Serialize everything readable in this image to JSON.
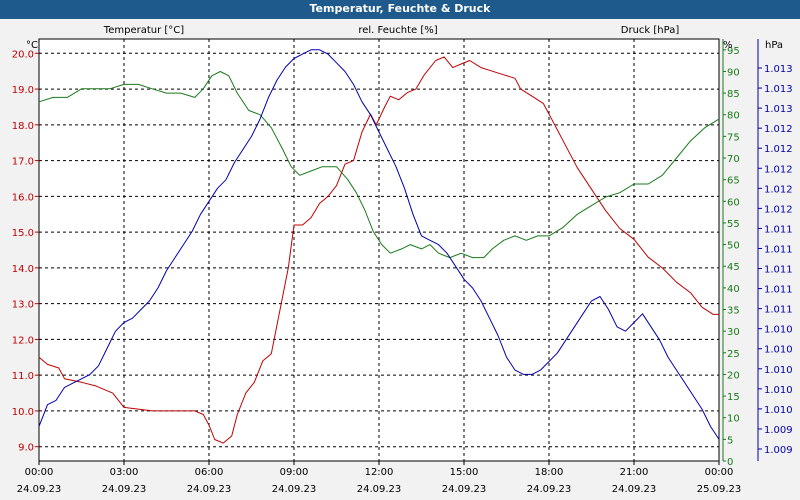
{
  "window": {
    "title": "Temperatur, Feuchte & Druck"
  },
  "colors": {
    "temperature": "#c00000",
    "humidity": "#1a7a1a",
    "pressure": "#0000b0",
    "title_bar": "#1f5a8c"
  },
  "chart_data": {
    "type": "line",
    "title": "Temperatur, Feuchte & Druck",
    "x_hours": [
      0,
      24
    ],
    "x_ticks": [
      {
        "h": 0,
        "time": "00:00",
        "date": "24.09.23"
      },
      {
        "h": 3,
        "time": "03:00",
        "date": "24.09.23"
      },
      {
        "h": 6,
        "time": "06:00",
        "date": "24.09.23"
      },
      {
        "h": 9,
        "time": "09:00",
        "date": "24.09.23"
      },
      {
        "h": 12,
        "time": "12:00",
        "date": "24.09.23"
      },
      {
        "h": 15,
        "time": "15:00",
        "date": "24.09.23"
      },
      {
        "h": 18,
        "time": "18:00",
        "date": "24.09.23"
      },
      {
        "h": 21,
        "time": "21:00",
        "date": "24.09.23"
      },
      {
        "h": 24,
        "time": "00:00",
        "date": "25.09.23"
      }
    ],
    "axes": {
      "temperature": {
        "label": "Temperatur [°C]",
        "unit": "°C",
        "ylim": [
          8.6,
          20.4
        ],
        "ticks": [
          "9.0",
          "10.0",
          "11.0",
          "12.0",
          "13.0",
          "14.0",
          "15.0",
          "16.0",
          "17.0",
          "18.0",
          "19.0",
          "20.0"
        ]
      },
      "humidity": {
        "label": "rel. Feuchte [%]",
        "unit": "%",
        "ylim": [
          0,
          97.5
        ],
        "ticks": [
          "0",
          "5",
          "10",
          "15",
          "20",
          "25",
          "30",
          "35",
          "40",
          "45",
          "50",
          "55",
          "60",
          "65",
          "70",
          "75",
          "80",
          "85",
          "90",
          "95"
        ]
      },
      "pressure": {
        "label": "Druck [hPa]",
        "unit": "hPa",
        "ticks": [
          "1.009",
          "1.009",
          "1.010",
          "1.010",
          "1.010",
          "1.010",
          "1.010",
          "1.011",
          "1.011",
          "1.011",
          "1.011",
          "1.011",
          "1.012",
          "1.012",
          "1.012",
          "1.012",
          "1.012",
          "1.013",
          "1.013",
          "1.013"
        ]
      }
    },
    "series": [
      {
        "name": "Temperatur [°C]",
        "key": "temperature",
        "points": [
          [
            0,
            11.5
          ],
          [
            0.3,
            11.3
          ],
          [
            0.7,
            11.2
          ],
          [
            0.9,
            10.9
          ],
          [
            1.5,
            10.8
          ],
          [
            2,
            10.7
          ],
          [
            2.6,
            10.5
          ],
          [
            3,
            10.1
          ],
          [
            3.5,
            10.05
          ],
          [
            4,
            10.0
          ],
          [
            5,
            10.0
          ],
          [
            5.5,
            10.0
          ],
          [
            5.8,
            9.9
          ],
          [
            6,
            9.6
          ],
          [
            6.2,
            9.2
          ],
          [
            6.5,
            9.1
          ],
          [
            6.8,
            9.3
          ],
          [
            7,
            9.9
          ],
          [
            7.3,
            10.5
          ],
          [
            7.6,
            10.8
          ],
          [
            7.9,
            11.4
          ],
          [
            8.2,
            11.6
          ],
          [
            8.5,
            12.8
          ],
          [
            8.8,
            14.0
          ],
          [
            9.0,
            15.2
          ],
          [
            9.3,
            15.2
          ],
          [
            9.6,
            15.4
          ],
          [
            9.9,
            15.8
          ],
          [
            10.2,
            16.0
          ],
          [
            10.5,
            16.3
          ],
          [
            10.8,
            16.9
          ],
          [
            11.1,
            17.0
          ],
          [
            11.4,
            17.8
          ],
          [
            11.7,
            18.3
          ],
          [
            11.9,
            18.0
          ],
          [
            12.2,
            18.5
          ],
          [
            12.4,
            18.8
          ],
          [
            12.7,
            18.7
          ],
          [
            13.0,
            18.9
          ],
          [
            13.3,
            19.0
          ],
          [
            13.6,
            19.4
          ],
          [
            14.0,
            19.8
          ],
          [
            14.3,
            19.9
          ],
          [
            14.6,
            19.6
          ],
          [
            14.9,
            19.7
          ],
          [
            15.2,
            19.8
          ],
          [
            15.6,
            19.6
          ],
          [
            16.0,
            19.5
          ],
          [
            16.4,
            19.4
          ],
          [
            16.8,
            19.3
          ],
          [
            17.0,
            19.0
          ],
          [
            17.4,
            18.8
          ],
          [
            17.8,
            18.6
          ],
          [
            18.2,
            18.0
          ],
          [
            18.6,
            17.4
          ],
          [
            19,
            16.8
          ],
          [
            19.5,
            16.2
          ],
          [
            20,
            15.6
          ],
          [
            20.5,
            15.1
          ],
          [
            21,
            14.8
          ],
          [
            21.5,
            14.3
          ],
          [
            22,
            14.0
          ],
          [
            22.5,
            13.6
          ],
          [
            23,
            13.3
          ],
          [
            23.4,
            12.9
          ],
          [
            23.8,
            12.7
          ],
          [
            24,
            12.7
          ]
        ]
      },
      {
        "name": "rel. Feuchte [%]",
        "key": "humidity",
        "points": [
          [
            0,
            83
          ],
          [
            0.5,
            84
          ],
          [
            1,
            84
          ],
          [
            1.5,
            86
          ],
          [
            2,
            86
          ],
          [
            2.5,
            86
          ],
          [
            3,
            87
          ],
          [
            3.5,
            87
          ],
          [
            4,
            86
          ],
          [
            4.5,
            85
          ],
          [
            5,
            85
          ],
          [
            5.5,
            84
          ],
          [
            5.8,
            86
          ],
          [
            6.1,
            89
          ],
          [
            6.4,
            90
          ],
          [
            6.7,
            89
          ],
          [
            7,
            85
          ],
          [
            7.4,
            81
          ],
          [
            7.8,
            80
          ],
          [
            8.2,
            77
          ],
          [
            8.6,
            72
          ],
          [
            8.9,
            68
          ],
          [
            9.2,
            66
          ],
          [
            9.6,
            67
          ],
          [
            10,
            68
          ],
          [
            10.5,
            68
          ],
          [
            10.9,
            65
          ],
          [
            11.2,
            62
          ],
          [
            11.5,
            58
          ],
          [
            11.8,
            53
          ],
          [
            12.1,
            50
          ],
          [
            12.4,
            48
          ],
          [
            12.8,
            49
          ],
          [
            13.1,
            50
          ],
          [
            13.5,
            49
          ],
          [
            13.8,
            50
          ],
          [
            14.1,
            48
          ],
          [
            14.5,
            47
          ],
          [
            14.9,
            48
          ],
          [
            15.3,
            47
          ],
          [
            15.7,
            47
          ],
          [
            16,
            49
          ],
          [
            16.4,
            51
          ],
          [
            16.8,
            52
          ],
          [
            17.2,
            51
          ],
          [
            17.6,
            52
          ],
          [
            18,
            52
          ],
          [
            18.5,
            54
          ],
          [
            19,
            57
          ],
          [
            19.5,
            59
          ],
          [
            20,
            61
          ],
          [
            20.5,
            62
          ],
          [
            21,
            64
          ],
          [
            21.5,
            64
          ],
          [
            22,
            66
          ],
          [
            22.5,
            70
          ],
          [
            23,
            74
          ],
          [
            23.5,
            77
          ],
          [
            24,
            79
          ]
        ]
      },
      {
        "name": "Druck [hPa]",
        "key": "pressure",
        "points": [
          [
            0,
            8
          ],
          [
            0.3,
            13
          ],
          [
            0.6,
            14
          ],
          [
            0.9,
            17
          ],
          [
            1.2,
            18
          ],
          [
            1.5,
            19
          ],
          [
            1.8,
            20
          ],
          [
            2.1,
            22
          ],
          [
            2.4,
            26
          ],
          [
            2.7,
            30
          ],
          [
            3,
            32
          ],
          [
            3.3,
            33
          ],
          [
            3.6,
            35
          ],
          [
            3.9,
            37
          ],
          [
            4.2,
            40
          ],
          [
            4.5,
            44
          ],
          [
            4.8,
            47
          ],
          [
            5.1,
            50
          ],
          [
            5.4,
            53
          ],
          [
            5.7,
            57
          ],
          [
            6,
            60
          ],
          [
            6.3,
            63
          ],
          [
            6.6,
            65
          ],
          [
            6.9,
            69
          ],
          [
            7.2,
            72
          ],
          [
            7.5,
            75
          ],
          [
            7.8,
            79
          ],
          [
            8.1,
            84
          ],
          [
            8.4,
            88
          ],
          [
            8.7,
            91
          ],
          [
            9,
            93
          ],
          [
            9.3,
            94
          ],
          [
            9.6,
            95
          ],
          [
            9.9,
            95
          ],
          [
            10.2,
            94
          ],
          [
            10.5,
            92
          ],
          [
            10.8,
            90
          ],
          [
            11.1,
            87
          ],
          [
            11.4,
            83
          ],
          [
            11.7,
            80
          ],
          [
            12,
            76
          ],
          [
            12.3,
            72
          ],
          [
            12.6,
            68
          ],
          [
            12.9,
            63
          ],
          [
            13.2,
            57
          ],
          [
            13.5,
            52
          ],
          [
            13.8,
            51
          ],
          [
            14.1,
            50
          ],
          [
            14.4,
            48
          ],
          [
            14.7,
            45
          ],
          [
            15,
            42
          ],
          [
            15.3,
            40
          ],
          [
            15.6,
            37
          ],
          [
            15.9,
            33
          ],
          [
            16.2,
            29
          ],
          [
            16.5,
            24
          ],
          [
            16.8,
            21
          ],
          [
            17.1,
            20
          ],
          [
            17.4,
            20
          ],
          [
            17.7,
            21
          ],
          [
            18,
            23
          ],
          [
            18.3,
            25
          ],
          [
            18.6,
            28
          ],
          [
            18.9,
            31
          ],
          [
            19.2,
            34
          ],
          [
            19.5,
            37
          ],
          [
            19.8,
            38
          ],
          [
            20.1,
            35
          ],
          [
            20.4,
            31
          ],
          [
            20.7,
            30
          ],
          [
            21,
            32
          ],
          [
            21.3,
            34
          ],
          [
            21.6,
            31
          ],
          [
            21.9,
            28
          ],
          [
            22.2,
            24
          ],
          [
            22.5,
            21
          ],
          [
            22.8,
            18
          ],
          [
            23.1,
            15
          ],
          [
            23.4,
            12
          ],
          [
            23.7,
            8
          ],
          [
            24,
            5
          ]
        ]
      }
    ]
  }
}
